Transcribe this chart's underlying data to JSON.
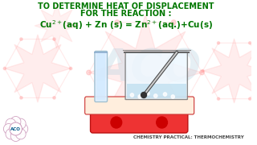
{
  "title_line1": "TO DETERMINE HEAT OF DISPLACEMENT",
  "title_line2": "FOR THE REACTION :",
  "equation": "Cu$^{2+}$(aq) + Zn (s) = Zn$^{2+}$(aq.)+Cu(s)",
  "footer": "CHEMISTRY PRACTICAL: THERMOCHEMISTRY",
  "logo_text": "ACO",
  "title_color": "#007700",
  "equation_color": "#007700",
  "footer_color": "#444444",
  "bg_color": "#ffffff",
  "star_color": "#ff8888",
  "star_alpha": 0.18,
  "watermark_color": "#aaccdd",
  "watermark_alpha": 0.3
}
